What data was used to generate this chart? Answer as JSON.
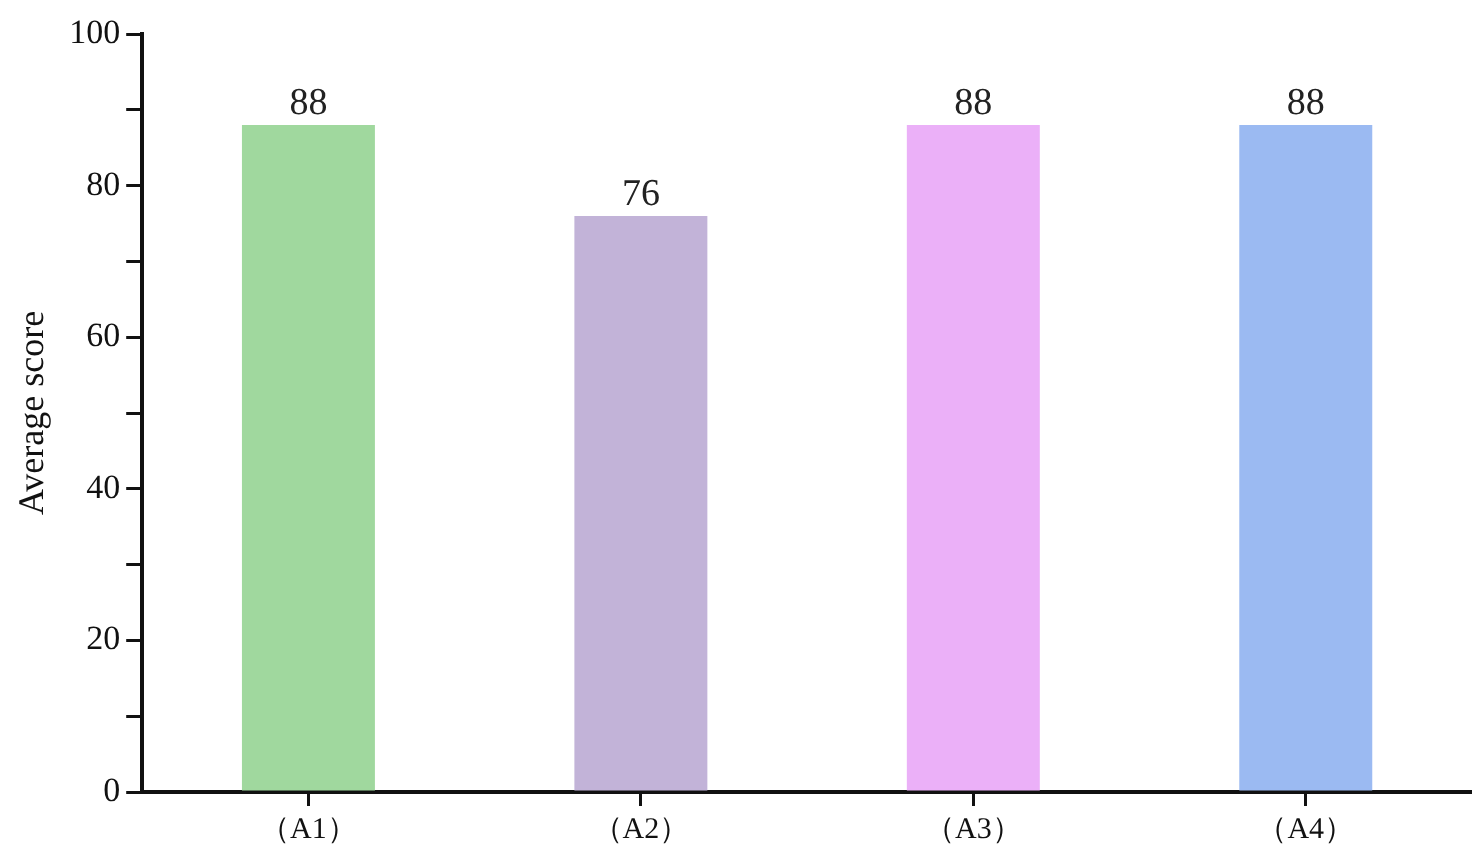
{
  "chart_data": {
    "type": "bar",
    "ylabel": "Average score",
    "categories": [
      "（A1）",
      "（A2）",
      "（A3）",
      "（A4）"
    ],
    "values": [
      88,
      76,
      88,
      88
    ],
    "colors": [
      "#a0d89e",
      "#c2b3d8",
      "#ebb0f8",
      "#9bbaf2"
    ],
    "ylim": [
      0,
      100
    ],
    "yticks": [
      0,
      {
        "value": 10,
        "label": null
      },
      20,
      {
        "value": 30,
        "label": null
      },
      40,
      {
        "value": 50,
        "label": null
      },
      60,
      {
        "value": 70,
        "label": null
      },
      80,
      {
        "value": 90,
        "label": null
      },
      100
    ],
    "data_labels": true,
    "grid": false,
    "legend": false
  }
}
